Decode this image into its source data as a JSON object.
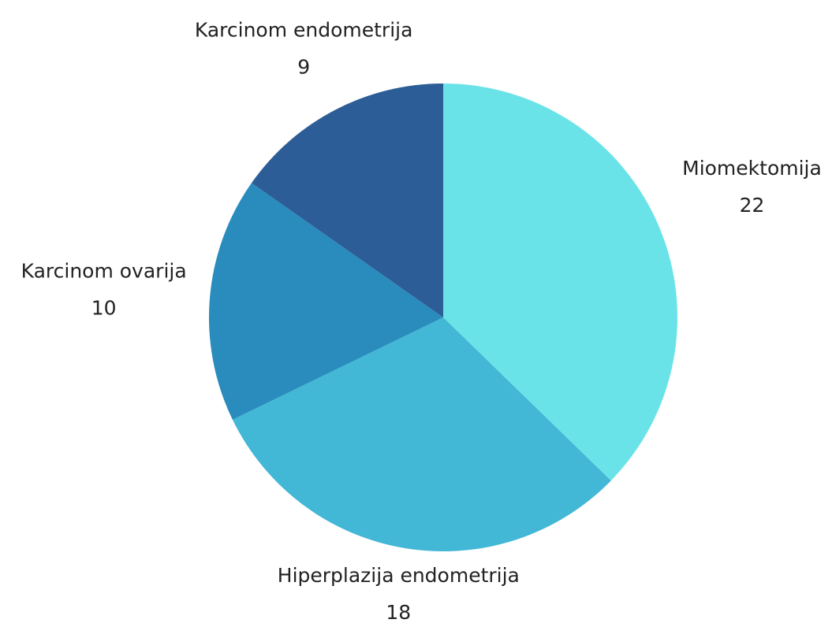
{
  "chart_data": {
    "type": "pie",
    "categories": [
      "Miomektomija",
      "Hiperplazija endometrija",
      "Karcinom ovarija",
      "Karcinom endometrija"
    ],
    "values": [
      22,
      18,
      10,
      9
    ],
    "colors": [
      "#6ae3e8",
      "#42b7d6",
      "#2a8bbd",
      "#2c5d96"
    ]
  }
}
